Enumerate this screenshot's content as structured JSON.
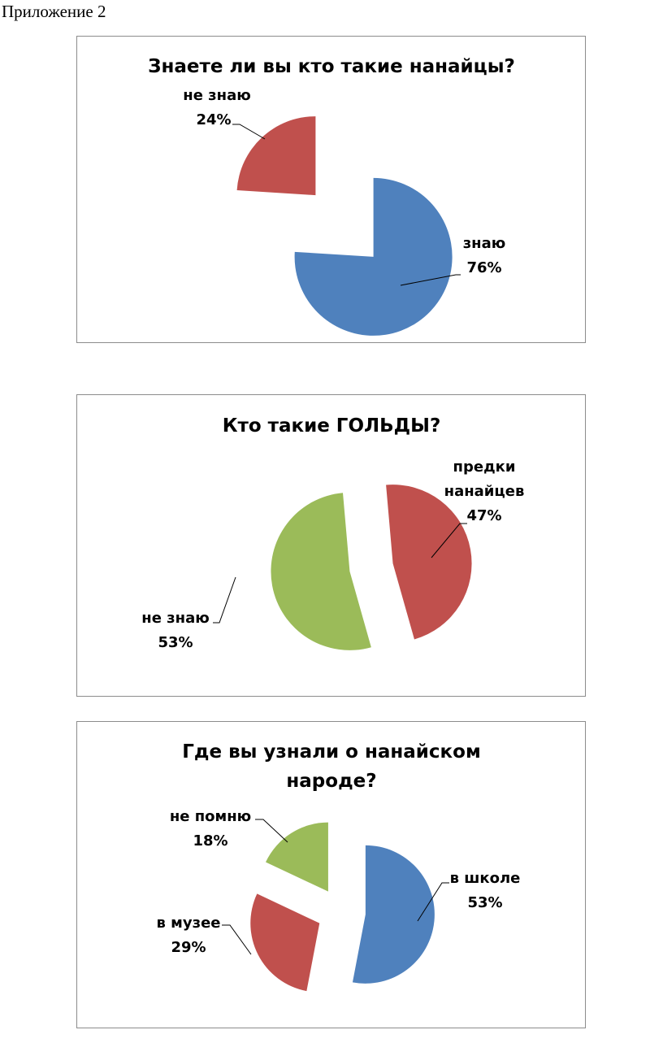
{
  "page_heading": "Приложение 2",
  "chart_data": [
    {
      "type": "pie",
      "title": "Знаете ли вы кто такие нанайцы?",
      "slices": [
        {
          "label": "знаю",
          "value": 76,
          "percent_label": "76%",
          "color": "#4F81BD"
        },
        {
          "label": "не знаю",
          "value": 24,
          "percent_label": "24%",
          "color": "#C0504D"
        }
      ],
      "exploded": true
    },
    {
      "type": "pie",
      "title": "Кто такие ГОЛЬДЫ?",
      "slices": [
        {
          "label": "предки нанайцев",
          "value": 47,
          "percent_label": "47%",
          "color": "#C0504D"
        },
        {
          "label": "не знаю",
          "value": 53,
          "percent_label": "53%",
          "color": "#9BBB59"
        }
      ],
      "exploded": true
    },
    {
      "type": "pie",
      "title": "Где вы узнали о нанайском народе?",
      "slices": [
        {
          "label": "в школе",
          "value": 53,
          "percent_label": "53%",
          "color": "#4F81BD"
        },
        {
          "label": "в музее",
          "value": 29,
          "percent_label": "29%",
          "color": "#C0504D"
        },
        {
          "label": "не помню",
          "value": 18,
          "percent_label": "18%",
          "color": "#9BBB59"
        }
      ],
      "exploded": true
    }
  ]
}
